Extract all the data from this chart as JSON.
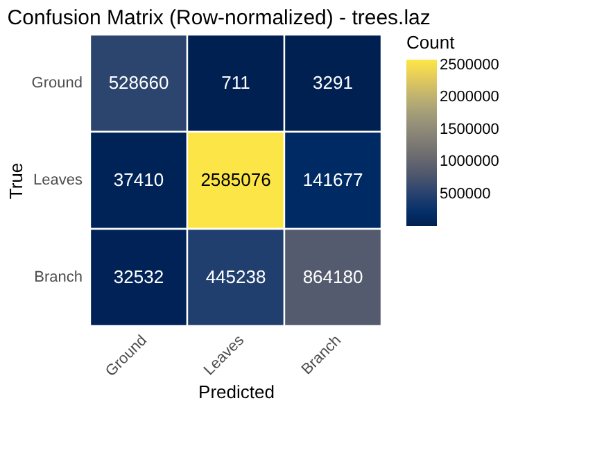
{
  "chart_data": {
    "type": "heatmap",
    "title": "Confusion Matrix (Row-normalized) - trees.laz",
    "xlabel": "Predicted",
    "ylabel": "True",
    "clabel": "Count",
    "categories": [
      "Ground",
      "Leaves",
      "Branch"
    ],
    "y_categories": [
      "Ground",
      "Leaves",
      "Branch"
    ],
    "cells": [
      [
        528660,
        711,
        3291
      ],
      [
        37410,
        2585076,
        141677
      ],
      [
        32532,
        445238,
        864180
      ]
    ],
    "data_labels": true,
    "clim": [
      711,
      2585076
    ],
    "cticks": [
      500000,
      1000000,
      1500000,
      2000000,
      2500000
    ]
  }
}
